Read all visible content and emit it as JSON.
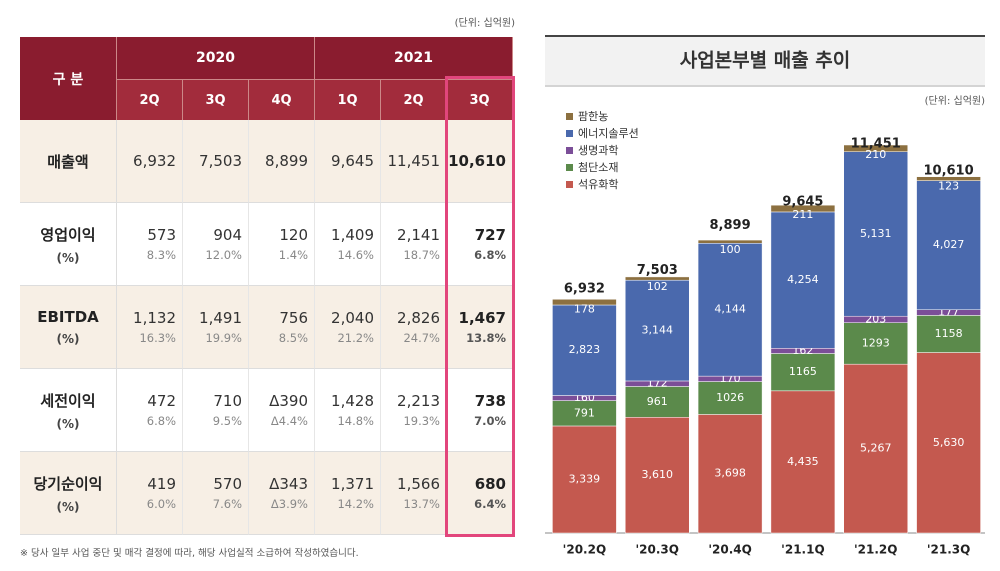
{
  "table": {
    "unit": "(단위: 십억원)",
    "corner": "구 분",
    "years": [
      "2020",
      "2021"
    ],
    "quarters": [
      "2Q",
      "3Q",
      "4Q",
      "1Q",
      "2Q",
      "3Q"
    ],
    "rows": [
      {
        "label": "매출액",
        "values": [
          "6,932",
          "7,503",
          "8,899",
          "9,645",
          "11,451",
          "10,610"
        ]
      },
      {
        "label": "영업이익",
        "sub": "(%)",
        "values": [
          "573",
          "904",
          "120",
          "1,409",
          "2,141",
          "727"
        ],
        "ratios": [
          "8.3%",
          "12.0%",
          "1.4%",
          "14.6%",
          "18.7%",
          "6.8%"
        ]
      },
      {
        "label": "EBITDA",
        "sub": "(%)",
        "values": [
          "1,132",
          "1,491",
          "756",
          "2,040",
          "2,826",
          "1,467"
        ],
        "ratios": [
          "16.3%",
          "19.9%",
          "8.5%",
          "21.2%",
          "24.7%",
          "13.8%"
        ]
      },
      {
        "label": "세전이익",
        "sub": "(%)",
        "values": [
          "472",
          "710",
          "Δ390",
          "1,428",
          "2,213",
          "738"
        ],
        "ratios": [
          "6.8%",
          "9.5%",
          "Δ4.4%",
          "14.8%",
          "19.3%",
          "7.0%"
        ]
      },
      {
        "label": "당기순이익",
        "sub": "(%)",
        "values": [
          "419",
          "570",
          "Δ343",
          "1,371",
          "1,566",
          "680"
        ],
        "ratios": [
          "6.0%",
          "7.6%",
          "Δ3.9%",
          "14.2%",
          "13.7%",
          "6.4%"
        ]
      }
    ],
    "footnote": "※ 당사 일부 사업 중단 및 매각 결정에 따라, 해당 사업실적 소급하여 작성하였습니다."
  },
  "chart_data": {
    "type": "stacked_bar",
    "title": "사업본부별 매출 추이",
    "unit": "(단위: 십억원)",
    "categories": [
      "'20.2Q",
      "'20.3Q",
      "'20.4Q",
      "'21.1Q",
      "'21.2Q",
      "'21.3Q"
    ],
    "series": [
      {
        "name": "석유화학",
        "color": "#c4594f",
        "values": [
          3339,
          3610,
          3698,
          4435,
          5267,
          5630
        ],
        "value_labels": [
          "3,339",
          "3,610",
          "3,698",
          "4,435",
          "5,267",
          "5,630"
        ]
      },
      {
        "name": "첨단소재",
        "color": "#5b8a4b",
        "values": [
          791,
          961,
          1026,
          1165,
          1293,
          1158
        ]
      },
      {
        "name": "생명과학",
        "color": "#7b4e98",
        "values": [
          160,
          172,
          170,
          162,
          203,
          177
        ]
      },
      {
        "name": "에너지솔루션",
        "color": "#4a69ad",
        "values": [
          2823,
          3144,
          4144,
          4254,
          5131,
          4027
        ],
        "value_labels": [
          "2,823",
          "3,144",
          "4,144",
          "4,254",
          "5,131",
          "4,027"
        ]
      },
      {
        "name": "팜한농",
        "color": "#8c7040",
        "values": [
          178,
          102,
          100,
          211,
          210,
          123
        ]
      }
    ],
    "totals": {
      "values": [
        6932,
        7503,
        8899,
        9645,
        11451,
        10610
      ],
      "value_labels": [
        "6,932",
        "7,503",
        "8,899",
        "9,645",
        "11,451",
        "10,610"
      ]
    }
  }
}
